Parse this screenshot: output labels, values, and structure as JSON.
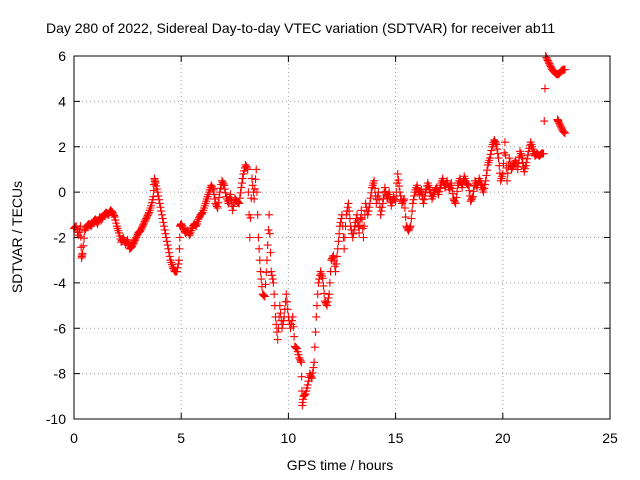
{
  "chart_data": {
    "type": "scatter",
    "title": "Day 280 of 2022, Sidereal Day-to-day VTEC variation (SDTVAR) for receiver ab11",
    "xlabel": "GPS time / hours",
    "ylabel": "SDTVAR / TECUs",
    "xlim": [
      0,
      25
    ],
    "ylim": [
      -10,
      6
    ],
    "xticks": [
      "0",
      "5",
      "10",
      "15",
      "20",
      "25"
    ],
    "yticks": [
      "-10",
      "-8",
      "-6",
      "-4",
      "-2",
      "0",
      "2",
      "4",
      "6"
    ],
    "grid": true,
    "legend": "none",
    "marker": "plus",
    "series": [
      {
        "color": "#ff0000",
        "points": [
          [
            0.0,
            -1.6
          ],
          [
            0.1,
            -1.5
          ],
          [
            0.2,
            -1.9
          ],
          [
            0.3,
            -1.5
          ],
          [
            0.35,
            -2.9
          ],
          [
            0.4,
            -2.7
          ],
          [
            0.5,
            -1.7
          ],
          [
            0.6,
            -1.5
          ],
          [
            0.7,
            -1.4
          ],
          [
            0.8,
            -1.5
          ],
          [
            0.9,
            -1.3
          ],
          [
            1.0,
            -1.2
          ],
          [
            1.1,
            -1.4
          ],
          [
            1.2,
            -1.1
          ],
          [
            1.3,
            -1.2
          ],
          [
            1.4,
            -1.0
          ],
          [
            1.5,
            -0.9
          ],
          [
            1.6,
            -1.0
          ],
          [
            1.7,
            -0.8
          ],
          [
            1.8,
            -0.9
          ],
          [
            1.9,
            -1.1
          ],
          [
            2.0,
            -1.5
          ],
          [
            2.1,
            -1.8
          ],
          [
            2.2,
            -2.2
          ],
          [
            2.3,
            -2.0
          ],
          [
            2.4,
            -2.3
          ],
          [
            2.5,
            -2.1
          ],
          [
            2.6,
            -2.5
          ],
          [
            2.7,
            -2.4
          ],
          [
            2.8,
            -2.2
          ],
          [
            2.9,
            -2.0
          ],
          [
            3.0,
            -1.8
          ],
          [
            3.1,
            -1.7
          ],
          [
            3.2,
            -1.5
          ],
          [
            3.3,
            -1.3
          ],
          [
            3.4,
            -1.1
          ],
          [
            3.5,
            -0.9
          ],
          [
            3.6,
            -0.6
          ],
          [
            3.7,
            -0.2
          ],
          [
            3.75,
            0.6
          ],
          [
            3.8,
            0.4
          ],
          [
            3.9,
            0.0
          ],
          [
            4.0,
            -0.5
          ],
          [
            4.1,
            -1.0
          ],
          [
            4.2,
            -1.5
          ],
          [
            4.3,
            -2.0
          ],
          [
            4.4,
            -2.5
          ],
          [
            4.5,
            -3.0
          ],
          [
            4.6,
            -3.3
          ],
          [
            4.7,
            -3.5
          ],
          [
            4.8,
            -3.5
          ],
          [
            4.9,
            -3.0
          ],
          [
            4.95,
            -1.5
          ],
          [
            5.0,
            -1.4
          ],
          [
            5.1,
            -1.6
          ],
          [
            5.2,
            -1.8
          ],
          [
            5.3,
            -1.7
          ],
          [
            5.4,
            -1.9
          ],
          [
            5.5,
            -1.6
          ],
          [
            5.6,
            -1.4
          ],
          [
            5.7,
            -1.5
          ],
          [
            5.8,
            -1.2
          ],
          [
            5.9,
            -1.0
          ],
          [
            6.0,
            -0.9
          ],
          [
            6.1,
            -0.6
          ],
          [
            6.2,
            -0.3
          ],
          [
            6.3,
            0.0
          ],
          [
            6.4,
            0.3
          ],
          [
            6.5,
            0.1
          ],
          [
            6.6,
            -0.5
          ],
          [
            6.7,
            -0.7
          ],
          [
            6.8,
            0.0
          ],
          [
            6.9,
            0.5
          ],
          [
            7.0,
            0.3
          ],
          [
            7.1,
            -0.2
          ],
          [
            7.2,
            -0.5
          ],
          [
            7.3,
            -0.1
          ],
          [
            7.4,
            -0.8
          ],
          [
            7.5,
            -0.3
          ],
          [
            7.6,
            -0.4
          ],
          [
            7.7,
            -0.5
          ],
          [
            7.8,
            0.2
          ],
          [
            7.9,
            0.8
          ],
          [
            8.0,
            1.2
          ],
          [
            8.1,
            1.0
          ],
          [
            8.2,
            -2.0
          ],
          [
            8.3,
            0.6
          ],
          [
            8.4,
            -0.3
          ],
          [
            8.5,
            1.0
          ],
          [
            8.6,
            -2.0
          ],
          [
            8.7,
            -3.5
          ],
          [
            8.8,
            -4.5
          ],
          [
            8.9,
            -4.6
          ],
          [
            9.0,
            -3.0
          ],
          [
            9.1,
            -1.0
          ],
          [
            9.2,
            -3.5
          ],
          [
            9.3,
            -4.0
          ],
          [
            9.4,
            -5.5
          ],
          [
            9.5,
            -6.5
          ],
          [
            9.6,
            -5.0
          ],
          [
            9.7,
            -6.0
          ],
          [
            9.8,
            -5.5
          ],
          [
            9.9,
            -4.5
          ],
          [
            10.0,
            -5.5
          ],
          [
            10.1,
            -6.0
          ],
          [
            10.2,
            -5.5
          ],
          [
            10.3,
            -6.8
          ],
          [
            10.4,
            -6.9
          ],
          [
            10.5,
            -7.3
          ],
          [
            10.6,
            -7.5
          ],
          [
            10.65,
            -9.4
          ],
          [
            10.7,
            -9.0
          ],
          [
            10.8,
            -8.9
          ],
          [
            10.9,
            -8.5
          ],
          [
            11.0,
            -8.0
          ],
          [
            11.1,
            -8.2
          ],
          [
            11.2,
            -7.5
          ],
          [
            11.3,
            -5.5
          ],
          [
            11.4,
            -4.0
          ],
          [
            11.5,
            -3.5
          ],
          [
            11.6,
            -3.8
          ],
          [
            11.7,
            -4.8
          ],
          [
            11.8,
            -5.0
          ],
          [
            11.9,
            -4.5
          ],
          [
            12.0,
            -3.0
          ],
          [
            12.1,
            -2.8
          ],
          [
            12.2,
            -3.5
          ],
          [
            12.3,
            -2.5
          ],
          [
            12.4,
            -1.5
          ],
          [
            12.5,
            -1.0
          ],
          [
            12.6,
            -2.5
          ],
          [
            12.7,
            -1.0
          ],
          [
            12.8,
            -0.5
          ],
          [
            12.9,
            -1.5
          ],
          [
            13.0,
            -2.0
          ],
          [
            13.1,
            -1.5
          ],
          [
            13.2,
            -1.0
          ],
          [
            13.3,
            -1.8
          ],
          [
            13.4,
            -0.8
          ],
          [
            13.5,
            -2.0
          ],
          [
            13.6,
            -0.5
          ],
          [
            13.7,
            -1.0
          ],
          [
            13.8,
            -0.5
          ],
          [
            13.9,
            0.2
          ],
          [
            14.0,
            0.5
          ],
          [
            14.1,
            -0.5
          ],
          [
            14.2,
            0.0
          ],
          [
            14.3,
            -1.0
          ],
          [
            14.4,
            -0.5
          ],
          [
            14.5,
            0.2
          ],
          [
            14.6,
            -0.3
          ],
          [
            14.7,
            0.0
          ],
          [
            14.8,
            -0.6
          ],
          [
            14.9,
            -0.2
          ],
          [
            15.0,
            -0.4
          ],
          [
            15.1,
            0.8
          ],
          [
            15.2,
            0.0
          ],
          [
            15.3,
            -0.5
          ],
          [
            15.4,
            -0.3
          ],
          [
            15.5,
            -1.5
          ],
          [
            15.6,
            -1.7
          ],
          [
            15.7,
            -1.5
          ],
          [
            15.8,
            -0.5
          ],
          [
            15.9,
            0.0
          ],
          [
            16.0,
            0.3
          ],
          [
            16.1,
            -0.1
          ],
          [
            16.2,
            0.1
          ],
          [
            16.3,
            -0.5
          ],
          [
            16.4,
            0.0
          ],
          [
            16.5,
            0.4
          ],
          [
            16.6,
            0.1
          ],
          [
            16.7,
            -0.3
          ],
          [
            16.8,
            0.0
          ],
          [
            16.9,
            0.2
          ],
          [
            17.0,
            -0.1
          ],
          [
            17.1,
            0.3
          ],
          [
            17.2,
            0.6
          ],
          [
            17.3,
            0.2
          ],
          [
            17.4,
            0.5
          ],
          [
            17.5,
            0.1
          ],
          [
            17.6,
            0.4
          ],
          [
            17.7,
            -0.3
          ],
          [
            17.8,
            -0.5
          ],
          [
            17.9,
            0.3
          ],
          [
            18.0,
            0.6
          ],
          [
            18.1,
            0.2
          ],
          [
            18.2,
            0.7
          ],
          [
            18.3,
            0.4
          ],
          [
            18.4,
            0.3
          ],
          [
            18.5,
            -0.4
          ],
          [
            18.6,
            -0.2
          ],
          [
            18.7,
            0.5
          ],
          [
            18.8,
            0.2
          ],
          [
            18.9,
            0.6
          ],
          [
            19.0,
            0.3
          ],
          [
            19.1,
            0.0
          ],
          [
            19.2,
            0.5
          ],
          [
            19.3,
            1.2
          ],
          [
            19.4,
            1.5
          ],
          [
            19.5,
            2.0
          ],
          [
            19.6,
            2.3
          ],
          [
            19.7,
            2.1
          ],
          [
            19.8,
            1.5
          ],
          [
            19.9,
            0.5
          ],
          [
            20.0,
            0.8
          ],
          [
            20.1,
            2.2
          ],
          [
            20.2,
            0.5
          ],
          [
            20.3,
            1.5
          ],
          [
            20.4,
            1.0
          ],
          [
            20.5,
            1.2
          ],
          [
            20.6,
            1.4
          ],
          [
            20.7,
            1.0
          ],
          [
            20.8,
            1.8
          ],
          [
            20.9,
            1.5
          ],
          [
            21.0,
            0.9
          ],
          [
            21.1,
            1.3
          ],
          [
            21.2,
            1.8
          ],
          [
            21.3,
            2.2
          ],
          [
            21.4,
            1.9
          ],
          [
            21.5,
            1.6
          ],
          [
            21.6,
            1.7
          ],
          [
            21.7,
            1.6
          ],
          [
            21.8,
            1.7
          ],
          [
            21.9,
            1.7
          ],
          [
            22.0,
            6.0
          ],
          [
            22.1,
            5.8
          ],
          [
            22.2,
            5.6
          ],
          [
            22.3,
            5.4
          ],
          [
            22.4,
            5.3
          ],
          [
            22.5,
            5.2
          ],
          [
            22.6,
            5.2
          ],
          [
            22.7,
            5.3
          ],
          [
            22.8,
            5.4
          ],
          [
            22.9,
            5.4
          ],
          [
            22.55,
            3.2
          ],
          [
            22.6,
            3.1
          ],
          [
            22.7,
            2.9
          ],
          [
            22.8,
            2.7
          ],
          [
            22.9,
            2.6
          ]
        ]
      }
    ]
  }
}
